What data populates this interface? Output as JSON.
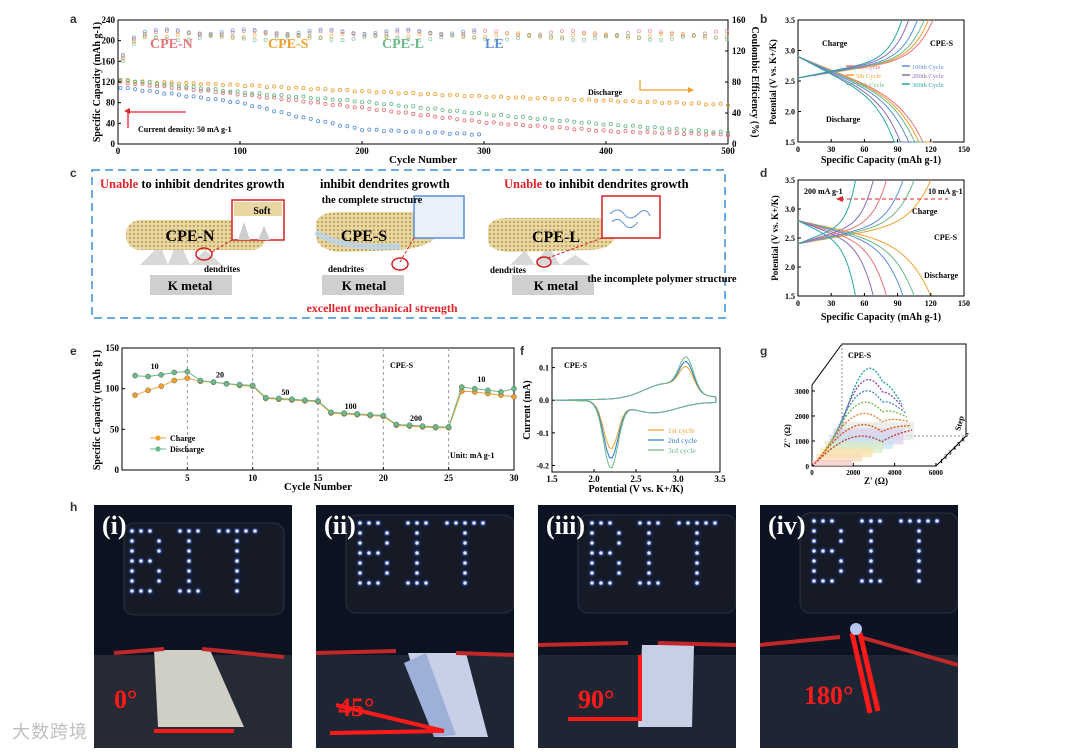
{
  "panels": {
    "a": "a",
    "b": "b",
    "c": "c",
    "d": "d",
    "e": "e",
    "f": "f",
    "g": "g",
    "h": "h"
  },
  "colors": {
    "cpen": "#e8737a",
    "cpes": "#f0a030",
    "cpel": "#6ab98a",
    "le": "#5a8fd8",
    "red": "#e0242a",
    "dash": "#3b8fd6"
  },
  "chart_data": [
    {
      "id": "a",
      "type": "scatter",
      "xlabel": "Cycle Number",
      "ylabel": "Specific Capacity (mAh g-1)",
      "y2label": "Coulombic Efficiency (%)",
      "xlim": [
        0,
        500
      ],
      "ylim": [
        0,
        240
      ],
      "y2lim": [
        0,
        160
      ],
      "xticks": [
        "0",
        "100",
        "200",
        "300",
        "400",
        "500"
      ],
      "yticks": [
        "0",
        "40",
        "80",
        "120",
        "160",
        "200",
        "240"
      ],
      "y2ticks": [
        "0",
        "40",
        "80",
        "120",
        "160"
      ],
      "legend": [
        "CPE-N",
        "CPE-S",
        "CPE-L",
        "LE"
      ],
      "annotations": {
        "density": "Current density: 50 mA g-1",
        "discharge": "Discharge"
      },
      "series": [
        {
          "name": "CPE-N",
          "capacity": [
            [
              0,
              120
            ],
            [
              100,
              96
            ],
            [
              200,
              70
            ],
            [
              300,
              42
            ],
            [
              400,
              25
            ],
            [
              500,
              18
            ]
          ],
          "ce_level": 143
        },
        {
          "name": "CPE-S",
          "capacity": [
            [
              0,
              122
            ],
            [
              100,
              114
            ],
            [
              200,
              102
            ],
            [
              300,
              92
            ],
            [
              400,
              84
            ],
            [
              500,
              76
            ]
          ],
          "ce_level": 140
        },
        {
          "name": "CPE-L",
          "capacity": [
            [
              0,
              125
            ],
            [
              100,
              100
            ],
            [
              200,
              82
            ],
            [
              300,
              58
            ],
            [
              400,
              38
            ],
            [
              500,
              22
            ]
          ],
          "ce_level": 137
        },
        {
          "name": "LE",
          "capacity": [
            [
              0,
              110
            ],
            [
              100,
              80
            ],
            [
              150,
              52
            ],
            [
              200,
              28
            ],
            [
              300,
              18
            ]
          ],
          "ce_level": 145
        }
      ]
    },
    {
      "id": "b",
      "type": "line",
      "title": "CPE-S",
      "xlabel": "Specific Capacity (mAh g-1)",
      "ylabel": "Potential (V vs. K+/K)",
      "xlim": [
        0,
        150
      ],
      "ylim": [
        1.5,
        3.5
      ],
      "xticks": [
        "0",
        "30",
        "60",
        "90",
        "120",
        "150"
      ],
      "yticks": [
        "1.5",
        "2.0",
        "2.5",
        "3.0",
        "3.5"
      ],
      "legend": [
        "1st Cycle",
        "5th Cycle",
        "10th Cycle",
        "100th Cycle",
        "200th Cycle",
        "300th Cycle"
      ],
      "annotations": {
        "charge": "Charge",
        "discharge": "Discharge"
      },
      "endpoints": [
        122,
        118,
        114,
        108,
        100,
        94
      ]
    },
    {
      "id": "d",
      "type": "line",
      "title": "CPE-S",
      "xlabel": "Specific Capacity (mAh g-1)",
      "ylabel": "Potential (V vs. K+/K)",
      "xlim": [
        0,
        150
      ],
      "ylim": [
        1.5,
        3.5
      ],
      "xticks": [
        "0",
        "30",
        "60",
        "90",
        "120",
        "150"
      ],
      "yticks": [
        "1.5",
        "2.0",
        "2.5",
        "3.0",
        "3.5"
      ],
      "annotations": {
        "high": "200 mA g-1",
        "low": "10 mA g-1",
        "charge": "Charge",
        "discharge": "Discharge"
      },
      "endpoints": [
        120,
        105,
        95,
        80,
        68,
        52
      ]
    },
    {
      "id": "e",
      "type": "line",
      "title": "CPE-S",
      "xlabel": "Cycle Number",
      "ylabel": "Specific Capacity (mAh g-1)",
      "xlim": [
        0,
        30
      ],
      "ylim": [
        0,
        150
      ],
      "xticks": [
        "5",
        "10",
        "15",
        "20",
        "25",
        "30"
      ],
      "yticks": [
        "0",
        "50",
        "100",
        "150"
      ],
      "legend": [
        "Charge",
        "Discharge"
      ],
      "rate_labels": [
        "10",
        "20",
        "50",
        "100",
        "200",
        "10"
      ],
      "unit": "Unit: mA g-1",
      "charge": [
        92,
        98,
        103,
        110,
        113,
        109,
        108,
        106,
        104,
        103,
        88,
        87,
        86,
        85,
        84,
        70,
        69,
        68,
        67,
        66,
        55,
        54,
        53,
        52,
        52,
        97,
        96,
        94,
        92,
        90
      ],
      "discharge": [
        116,
        115,
        117,
        120,
        121,
        110,
        108,
        106,
        105,
        104,
        89,
        88,
        87,
        86,
        85,
        71,
        70,
        69,
        68,
        67,
        56,
        55,
        54,
        53,
        53,
        102,
        100,
        98,
        96,
        100
      ]
    },
    {
      "id": "f",
      "type": "line",
      "title": "CPE-S",
      "xlabel": "Potential (V vs. K+/K)",
      "ylabel": "Current (mA)",
      "xlim": [
        1.5,
        3.5
      ],
      "ylim": [
        -0.2,
        0.15
      ],
      "xticks": [
        "1.5",
        "2.0",
        "2.5",
        "3.0",
        "3.5"
      ],
      "yticks": [
        "-0.2",
        "-0.1",
        "0.0",
        "0.1"
      ],
      "legend": [
        "1st cycle",
        "2nd cycle",
        "3rd cycle"
      ]
    },
    {
      "id": "g",
      "type": "line",
      "title": "CPE-S",
      "xlabel": "Z' (Ω)",
      "ylabel": "Z'' (Ω)",
      "zlabel": "Step",
      "xticks": [
        "0",
        "2000",
        "4000",
        "6000"
      ],
      "yticks": [
        "0",
        "1000",
        "2000",
        "3000"
      ],
      "zticks": [
        "1",
        "2",
        "3",
        "4",
        "5",
        "6",
        "7"
      ]
    }
  ],
  "schematic": {
    "captions": [
      {
        "lead": "Unable",
        "rest": " to inhibit dendrites growth"
      },
      {
        "lead": "",
        "rest": "inhibit dendrites growth"
      },
      {
        "lead": "Unable",
        "rest": " to inhibit dendrites growth"
      }
    ],
    "names": [
      "CPE-N",
      "CPE-S",
      "CPE-L"
    ],
    "metal": "K metal",
    "dendrites": "dendrites",
    "soft": "Soft",
    "complete": "the complete structure",
    "incomplete": "the incomplete polymer structure",
    "strength": "excellent mechanical strength"
  },
  "photos": {
    "labels": [
      "(i)",
      "(ii)",
      "(iii)",
      "(iv)"
    ],
    "angles": [
      "0°",
      "45°",
      "90°",
      "180°"
    ],
    "sign": "BIT"
  },
  "watermark": "大数跨境"
}
